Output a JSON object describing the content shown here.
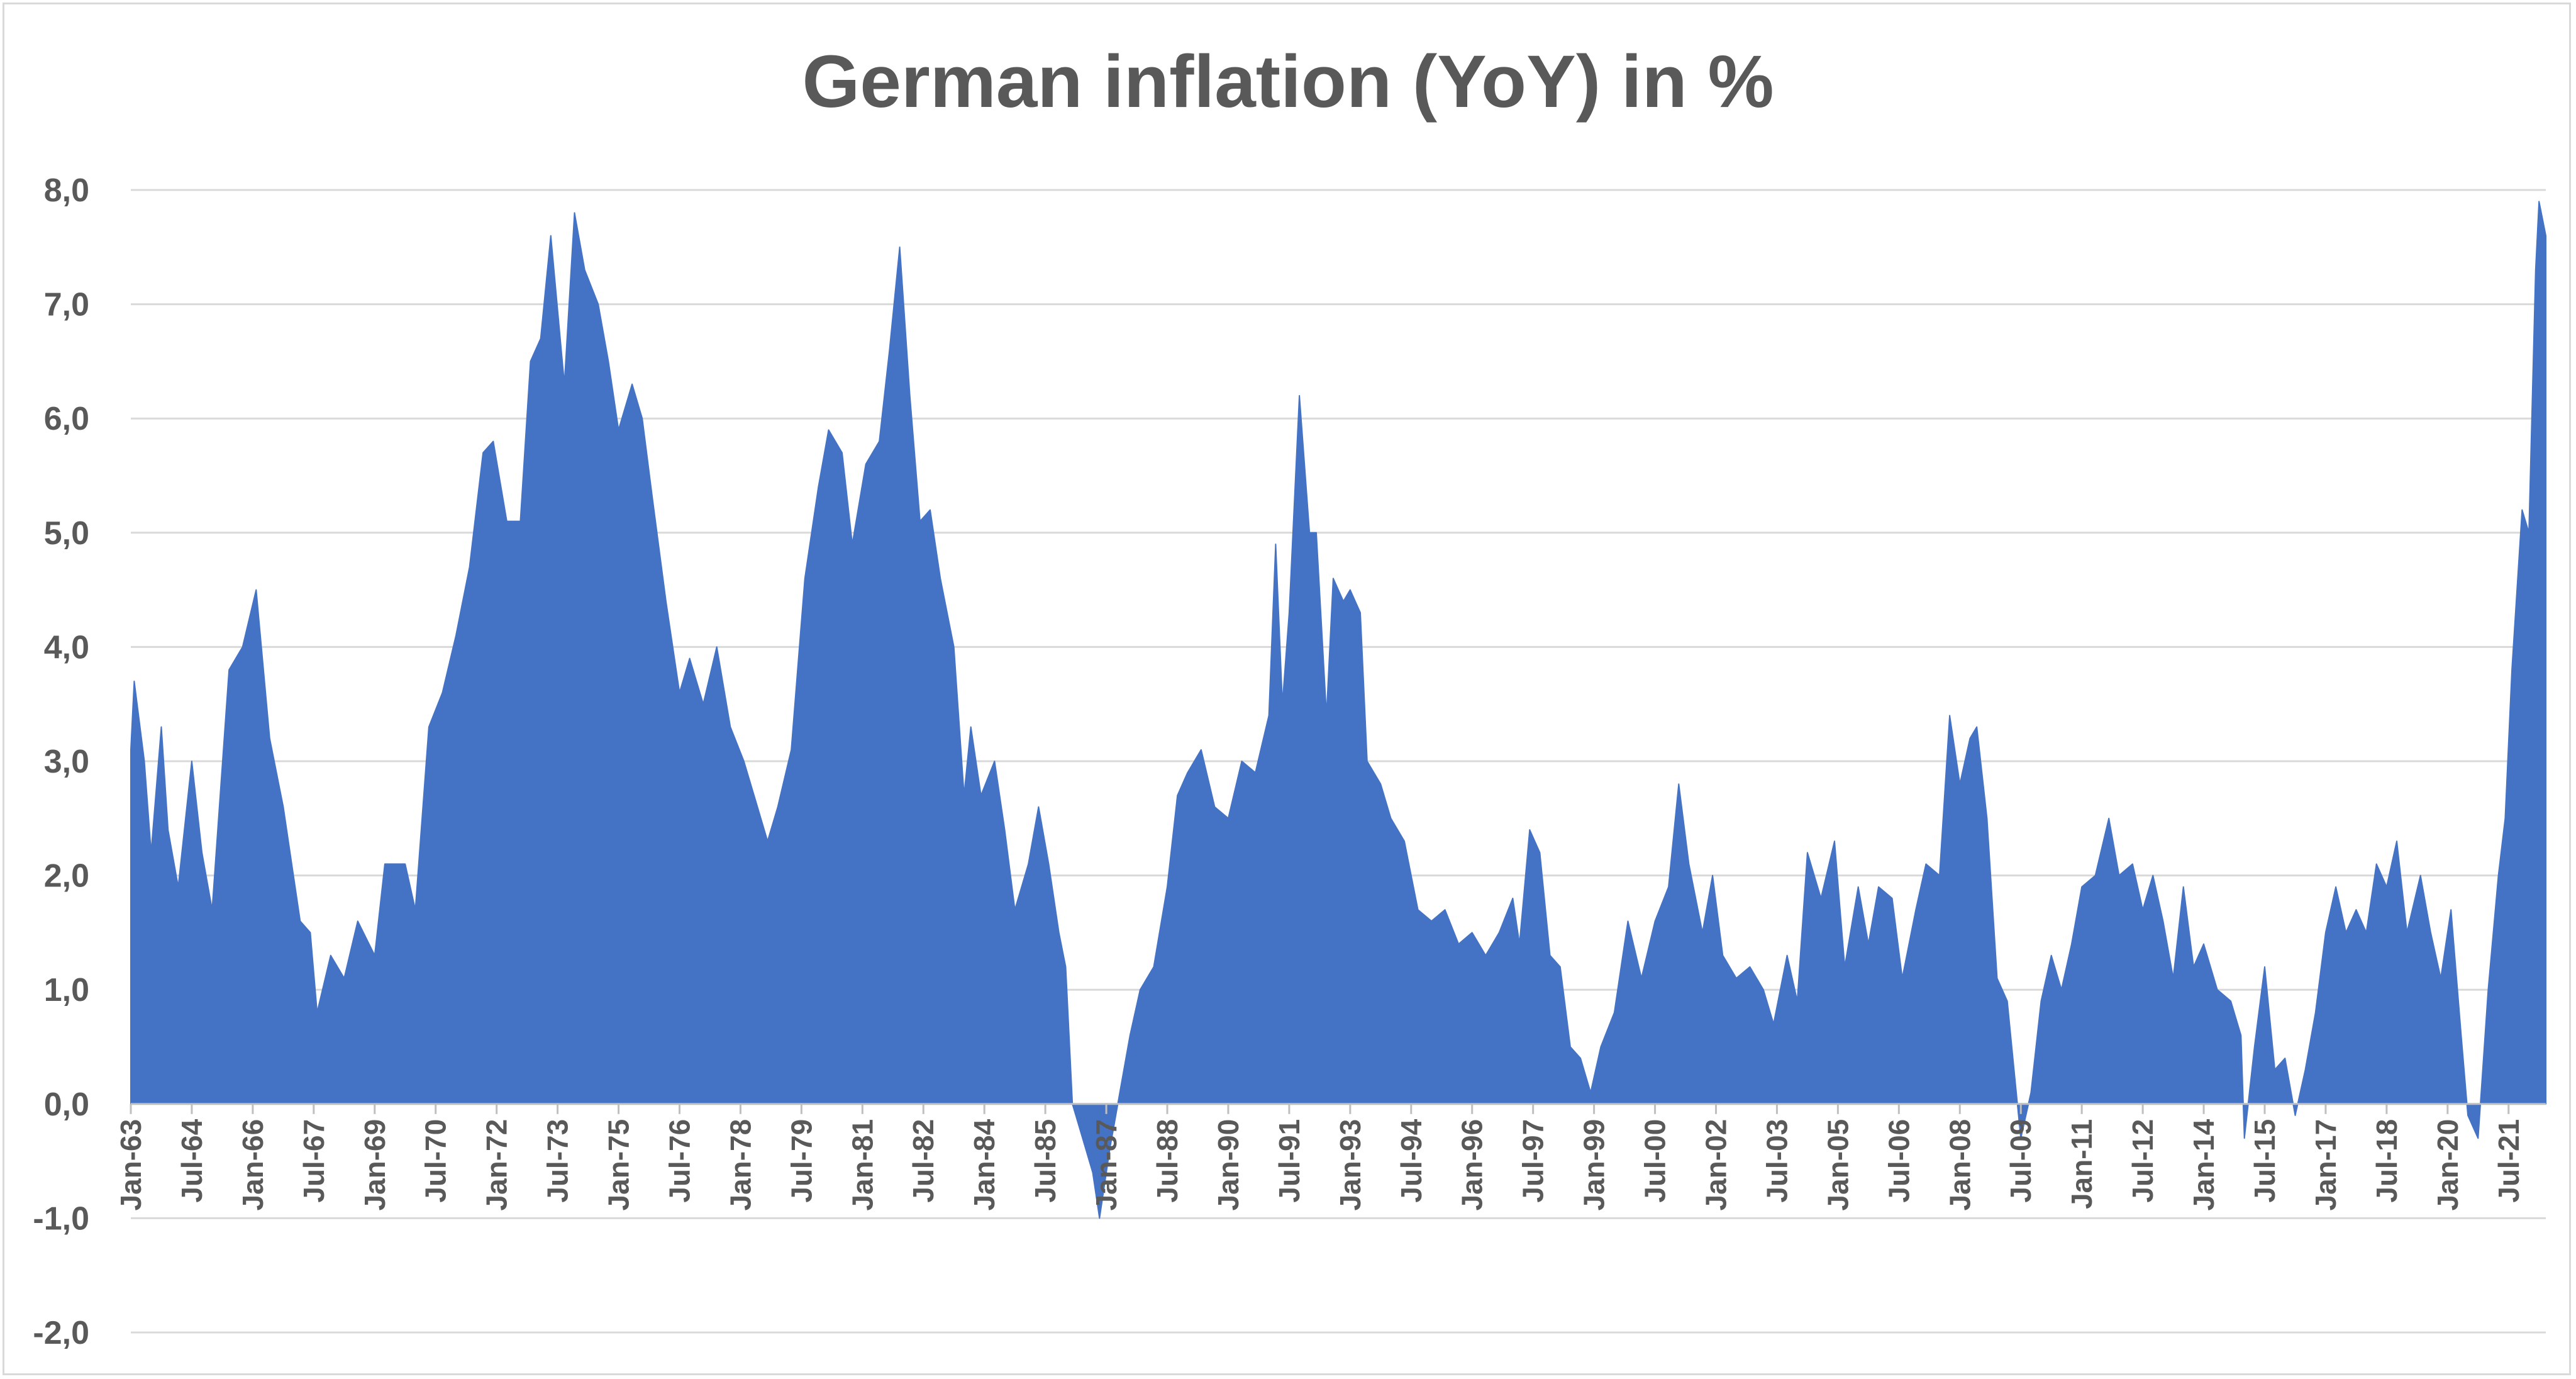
{
  "chart_data": {
    "type": "area",
    "title": "German inflation (YoY) in %",
    "xlabel": "",
    "ylabel": "",
    "ylim": [
      -2.0,
      8.0
    ],
    "y_ticks": [
      "-2,0",
      "-1,0",
      "0,0",
      "1,0",
      "2,0",
      "3,0",
      "4,0",
      "5,0",
      "6,0",
      "7,0",
      "8,0"
    ],
    "x_tick_labels": [
      "Jan-63",
      "Jul-64",
      "Jan-66",
      "Jul-67",
      "Jan-69",
      "Jul-70",
      "Jan-72",
      "Jul-73",
      "Jan-75",
      "Jul-76",
      "Jan-78",
      "Jul-79",
      "Jan-81",
      "Jul-82",
      "Jan-84",
      "Jul-85",
      "Jan-87",
      "Jul-88",
      "Jan-90",
      "Jul-91",
      "Jan-93",
      "Jul-94",
      "Jan-96",
      "Jul-97",
      "Jan-99",
      "Jul-00",
      "Jan-02",
      "Jul-03",
      "Jan-05",
      "Jul-06",
      "Jan-08",
      "Jul-09",
      "Jan-11",
      "Jul-12",
      "Jan-14",
      "Jul-15",
      "Jan-17",
      "Jul-18",
      "Jan-20",
      "Jul-21"
    ],
    "grid": true,
    "legend": "none",
    "series_color": "#4472C4",
    "x_start": "1963-01",
    "x_end": "2022-06",
    "series": [
      {
        "points": [
          [
            "1963-01",
            3.1
          ],
          [
            "1963-02",
            3.7
          ],
          [
            "1963-05",
            3.0
          ],
          [
            "1963-07",
            2.2
          ],
          [
            "1963-10",
            3.3
          ],
          [
            "1963-12",
            2.4
          ],
          [
            "1964-03",
            1.9
          ],
          [
            "1964-07",
            3.0
          ],
          [
            "1964-10",
            2.2
          ],
          [
            "1965-01",
            1.7
          ],
          [
            "1965-06",
            3.8
          ],
          [
            "1965-10",
            4.0
          ],
          [
            "1966-02",
            4.5
          ],
          [
            "1966-06",
            3.2
          ],
          [
            "1966-10",
            2.6
          ],
          [
            "1967-03",
            1.6
          ],
          [
            "1967-06",
            1.5
          ],
          [
            "1967-08",
            0.8
          ],
          [
            "1967-12",
            1.3
          ],
          [
            "1968-04",
            1.1
          ],
          [
            "1968-08",
            1.6
          ],
          [
            "1969-01",
            1.3
          ],
          [
            "1969-04",
            2.1
          ],
          [
            "1969-10",
            2.1
          ],
          [
            "1970-01",
            1.7
          ],
          [
            "1970-05",
            3.3
          ],
          [
            "1970-09",
            3.6
          ],
          [
            "1971-01",
            4.1
          ],
          [
            "1971-05",
            4.7
          ],
          [
            "1971-09",
            5.7
          ],
          [
            "1971-12",
            5.8
          ],
          [
            "1972-04",
            5.1
          ],
          [
            "1972-08",
            5.1
          ],
          [
            "1972-11",
            6.5
          ],
          [
            "1973-02",
            6.7
          ],
          [
            "1973-05",
            7.6
          ],
          [
            "1973-09",
            6.3
          ],
          [
            "1973-12",
            7.8
          ],
          [
            "1974-03",
            7.3
          ],
          [
            "1974-07",
            7.0
          ],
          [
            "1974-10",
            6.5
          ],
          [
            "1975-01",
            5.9
          ],
          [
            "1975-05",
            6.3
          ],
          [
            "1975-08",
            6.0
          ],
          [
            "1975-11",
            5.3
          ],
          [
            "1976-03",
            4.4
          ],
          [
            "1976-07",
            3.6
          ],
          [
            "1976-10",
            3.9
          ],
          [
            "1977-02",
            3.5
          ],
          [
            "1977-06",
            4.0
          ],
          [
            "1977-10",
            3.3
          ],
          [
            "1978-02",
            3.0
          ],
          [
            "1978-06",
            2.6
          ],
          [
            "1978-09",
            2.3
          ],
          [
            "1978-12",
            2.6
          ],
          [
            "1979-04",
            3.1
          ],
          [
            "1979-08",
            4.6
          ],
          [
            "1979-12",
            5.4
          ],
          [
            "1980-03",
            5.9
          ],
          [
            "1980-07",
            5.7
          ],
          [
            "1980-10",
            4.9
          ],
          [
            "1981-02",
            5.6
          ],
          [
            "1981-06",
            5.8
          ],
          [
            "1981-09",
            6.6
          ],
          [
            "1981-12",
            7.5
          ],
          [
            "1982-03",
            6.2
          ],
          [
            "1982-06",
            5.1
          ],
          [
            "1982-09",
            5.2
          ],
          [
            "1982-12",
            4.6
          ],
          [
            "1983-04",
            4.0
          ],
          [
            "1983-07",
            2.7
          ],
          [
            "1983-09",
            3.3
          ],
          [
            "1983-12",
            2.7
          ],
          [
            "1984-04",
            3.0
          ],
          [
            "1984-07",
            2.4
          ],
          [
            "1984-10",
            1.7
          ],
          [
            "1985-02",
            2.1
          ],
          [
            "1985-05",
            2.6
          ],
          [
            "1985-08",
            2.1
          ],
          [
            "1985-11",
            1.5
          ],
          [
            "1986-01",
            1.2
          ],
          [
            "1986-03",
            0.0
          ],
          [
            "1986-06",
            -0.3
          ],
          [
            "1986-09",
            -0.6
          ],
          [
            "1986-11",
            -1.0
          ],
          [
            "1987-02",
            -0.4
          ],
          [
            "1987-05",
            0.1
          ],
          [
            "1987-08",
            0.6
          ],
          [
            "1987-11",
            1.0
          ],
          [
            "1988-03",
            1.2
          ],
          [
            "1988-07",
            1.9
          ],
          [
            "1988-10",
            2.7
          ],
          [
            "1989-01",
            2.9
          ],
          [
            "1989-05",
            3.1
          ],
          [
            "1989-09",
            2.6
          ],
          [
            "1990-01",
            2.5
          ],
          [
            "1990-05",
            3.0
          ],
          [
            "1990-09",
            2.9
          ],
          [
            "1991-01",
            3.4
          ],
          [
            "1991-03",
            4.9
          ],
          [
            "1991-05",
            3.5
          ],
          [
            "1991-07",
            4.3
          ],
          [
            "1991-10",
            6.2
          ],
          [
            "1992-01",
            5.0
          ],
          [
            "1992-03",
            5.0
          ],
          [
            "1992-06",
            3.4
          ],
          [
            "1992-08",
            4.6
          ],
          [
            "1992-11",
            4.4
          ],
          [
            "1993-01",
            4.5
          ],
          [
            "1993-04",
            4.3
          ],
          [
            "1993-06",
            3.0
          ],
          [
            "1993-10",
            2.8
          ],
          [
            "1994-01",
            2.5
          ],
          [
            "1994-05",
            2.3
          ],
          [
            "1994-09",
            1.7
          ],
          [
            "1995-01",
            1.6
          ],
          [
            "1995-05",
            1.7
          ],
          [
            "1995-09",
            1.4
          ],
          [
            "1996-01",
            1.5
          ],
          [
            "1996-05",
            1.3
          ],
          [
            "1996-09",
            1.5
          ],
          [
            "1997-01",
            1.8
          ],
          [
            "1997-03",
            1.4
          ],
          [
            "1997-06",
            2.4
          ],
          [
            "1997-09",
            2.2
          ],
          [
            "1997-12",
            1.3
          ],
          [
            "1998-03",
            1.2
          ],
          [
            "1998-06",
            0.5
          ],
          [
            "1998-09",
            0.4
          ],
          [
            "1998-12",
            0.1
          ],
          [
            "1999-03",
            0.5
          ],
          [
            "1999-07",
            0.8
          ],
          [
            "1999-11",
            1.6
          ],
          [
            "2000-03",
            1.1
          ],
          [
            "2000-07",
            1.6
          ],
          [
            "2000-11",
            1.9
          ],
          [
            "2001-02",
            2.8
          ],
          [
            "2001-05",
            2.1
          ],
          [
            "2001-09",
            1.5
          ],
          [
            "2001-12",
            2.0
          ],
          [
            "2002-03",
            1.3
          ],
          [
            "2002-07",
            1.1
          ],
          [
            "2002-11",
            1.2
          ],
          [
            "2003-03",
            1.0
          ],
          [
            "2003-06",
            0.7
          ],
          [
            "2003-10",
            1.3
          ],
          [
            "2004-01",
            0.9
          ],
          [
            "2004-04",
            2.2
          ],
          [
            "2004-08",
            1.8
          ],
          [
            "2004-12",
            2.3
          ],
          [
            "2005-03",
            1.2
          ],
          [
            "2005-07",
            1.9
          ],
          [
            "2005-10",
            1.4
          ],
          [
            "2006-01",
            1.9
          ],
          [
            "2006-05",
            1.8
          ],
          [
            "2006-08",
            1.1
          ],
          [
            "2006-12",
            1.7
          ],
          [
            "2007-03",
            2.1
          ],
          [
            "2007-07",
            2.0
          ],
          [
            "2007-10",
            3.4
          ],
          [
            "2008-01",
            2.8
          ],
          [
            "2008-04",
            3.2
          ],
          [
            "2008-06",
            3.3
          ],
          [
            "2008-09",
            2.5
          ],
          [
            "2008-12",
            1.1
          ],
          [
            "2009-03",
            0.9
          ],
          [
            "2009-05",
            0.3
          ],
          [
            "2009-07",
            -0.3
          ],
          [
            "2009-10",
            0.1
          ],
          [
            "2010-01",
            0.9
          ],
          [
            "2010-04",
            1.3
          ],
          [
            "2010-07",
            1.0
          ],
          [
            "2010-10",
            1.4
          ],
          [
            "2011-01",
            1.9
          ],
          [
            "2011-05",
            2.0
          ],
          [
            "2011-09",
            2.5
          ],
          [
            "2011-12",
            2.0
          ],
          [
            "2012-04",
            2.1
          ],
          [
            "2012-07",
            1.7
          ],
          [
            "2012-10",
            2.0
          ],
          [
            "2013-01",
            1.6
          ],
          [
            "2013-04",
            1.1
          ],
          [
            "2013-07",
            1.9
          ],
          [
            "2013-10",
            1.2
          ],
          [
            "2014-01",
            1.4
          ],
          [
            "2014-05",
            1.0
          ],
          [
            "2014-09",
            0.9
          ],
          [
            "2014-12",
            0.6
          ],
          [
            "2015-01",
            -0.3
          ],
          [
            "2015-04",
            0.5
          ],
          [
            "2015-07",
            1.2
          ],
          [
            "2015-10",
            0.3
          ],
          [
            "2016-01",
            0.4
          ],
          [
            "2016-04",
            -0.1
          ],
          [
            "2016-07",
            0.3
          ],
          [
            "2016-10",
            0.8
          ],
          [
            "2017-01",
            1.5
          ],
          [
            "2017-04",
            1.9
          ],
          [
            "2017-07",
            1.5
          ],
          [
            "2017-10",
            1.7
          ],
          [
            "2018-01",
            1.5
          ],
          [
            "2018-04",
            2.1
          ],
          [
            "2018-07",
            1.9
          ],
          [
            "2018-10",
            2.3
          ],
          [
            "2019-01",
            1.5
          ],
          [
            "2019-05",
            2.0
          ],
          [
            "2019-08",
            1.5
          ],
          [
            "2019-11",
            1.1
          ],
          [
            "2020-02",
            1.7
          ],
          [
            "2020-05",
            0.6
          ],
          [
            "2020-07",
            -0.1
          ],
          [
            "2020-10",
            -0.3
          ],
          [
            "2021-01",
            1.0
          ],
          [
            "2021-04",
            2.0
          ],
          [
            "2021-06",
            2.5
          ],
          [
            "2021-08",
            3.8
          ],
          [
            "2021-11",
            5.2
          ],
          [
            "2022-01",
            5.0
          ],
          [
            "2022-03",
            7.3
          ],
          [
            "2022-04",
            7.9
          ],
          [
            "2022-06",
            7.6
          ]
        ]
      }
    ]
  }
}
